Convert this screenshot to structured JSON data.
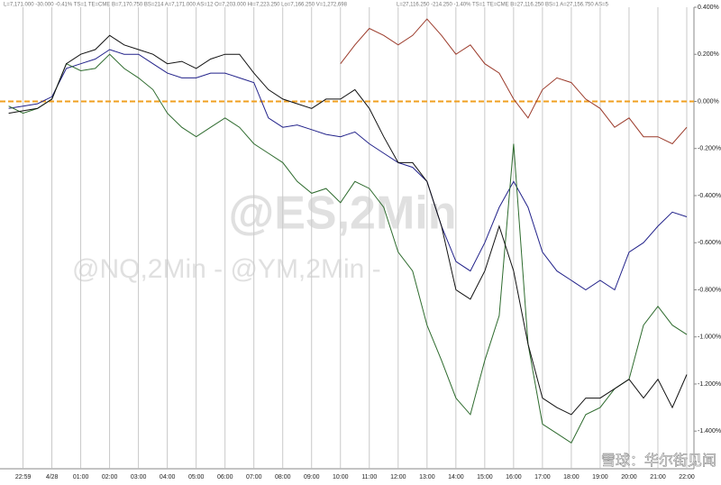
{
  "chart_data": {
    "type": "line",
    "header": [
      "L=7,171.000 -30.000 -0.41% TS=1 TE=CME B=7,170.750 BS=214 A=7,171.000 AS=12 O=7,203.000 Hi=7,223.250 Lo=7,166.250 V=1,272,698",
      "L=27,116.250 -214.250 -1.40% TS=1 TE=CME B=27,116.250 BS=1 A=27,156.750 AS=5"
    ],
    "watermarks": [
      "@ES,2Min",
      "@NQ,2Min - @YM,2Min -",
      "雪球：华尔街见闻"
    ],
    "x": [
      -1.5,
      -1,
      -0.5,
      0,
      0.5,
      1,
      1.5,
      2,
      2.5,
      3,
      3.5,
      4,
      4.5,
      5,
      5.5,
      6,
      6.5,
      7,
      7.5,
      8,
      8.5,
      9,
      9.5,
      10,
      10.5,
      11,
      11.5,
      12,
      12.5,
      13,
      13.5,
      14,
      14.5,
      15,
      15.5,
      16,
      16.5,
      17,
      17.5,
      18,
      18.5,
      19,
      19.5,
      20,
      20.5,
      21,
      21.5,
      22
    ],
    "xlim": [
      -1.8,
      22.25
    ],
    "xticks": [
      {
        "value": -1,
        "label": "22:59"
      },
      {
        "value": 0,
        "label": "4/28"
      },
      {
        "value": 1,
        "label": "01:00"
      },
      {
        "value": 2,
        "label": "02:00"
      },
      {
        "value": 3,
        "label": "03:00"
      },
      {
        "value": 4,
        "label": "04:00"
      },
      {
        "value": 5,
        "label": "05:00"
      },
      {
        "value": 6,
        "label": "06:00"
      },
      {
        "value": 7,
        "label": "07:00"
      },
      {
        "value": 8,
        "label": "08:00"
      },
      {
        "value": 9,
        "label": "09:00"
      },
      {
        "value": 10,
        "label": "10:00"
      },
      {
        "value": 11,
        "label": "11:00"
      },
      {
        "value": 12,
        "label": "12:00"
      },
      {
        "value": 13,
        "label": "13:00"
      },
      {
        "value": 14,
        "label": "14:00"
      },
      {
        "value": 15,
        "label": "15:00"
      },
      {
        "value": 16,
        "label": "16:00"
      },
      {
        "value": 17,
        "label": "17:00"
      },
      {
        "value": 18,
        "label": "18:00"
      },
      {
        "value": 19,
        "label": "19:00"
      },
      {
        "value": 20,
        "label": "20:00"
      },
      {
        "value": 21,
        "label": "21:00"
      },
      {
        "value": 22,
        "label": "22:00"
      }
    ],
    "ylim": [
      -1.56,
      0.4
    ],
    "yticks": [
      {
        "value": 0.4,
        "label": "0.400%"
      },
      {
        "value": 0.2,
        "label": "0.200%"
      },
      {
        "value": 0,
        "label": "0.000%"
      },
      {
        "value": -0.2,
        "label": "-0.200%"
      },
      {
        "value": -0.4,
        "label": "-0.400%"
      },
      {
        "value": -0.6,
        "label": "-0.600%"
      },
      {
        "value": -0.8,
        "label": "-0.800%"
      },
      {
        "value": -1.0,
        "label": "-1.000%"
      },
      {
        "value": -1.2,
        "label": "-1.200%"
      },
      {
        "value": -1.4,
        "label": "-1.400%"
      }
    ],
    "grid": true,
    "zero_line_color": "#f0a020",
    "series": [
      {
        "color": "#9b3a2a",
        "values": [
          null,
          null,
          null,
          null,
          null,
          null,
          null,
          null,
          null,
          null,
          null,
          null,
          null,
          null,
          null,
          null,
          null,
          null,
          null,
          null,
          null,
          null,
          null,
          0.16,
          0.24,
          0.31,
          0.28,
          0.24,
          0.28,
          0.35,
          0.28,
          0.2,
          0.24,
          0.16,
          0.12,
          0.01,
          -0.07,
          0.05,
          0.1,
          0.08,
          0.01,
          -0.03,
          -0.11,
          -0.07,
          -0.15,
          -0.15,
          -0.18,
          -0.11
        ]
      },
      {
        "color": "#22228a",
        "values": [
          -0.03,
          -0.02,
          -0.01,
          0.02,
          0.14,
          0.16,
          0.18,
          0.22,
          0.2,
          0.2,
          0.16,
          0.12,
          0.1,
          0.1,
          0.12,
          0.12,
          0.1,
          0.08,
          -0.07,
          -0.11,
          -0.1,
          -0.12,
          -0.14,
          -0.15,
          -0.13,
          -0.18,
          -0.22,
          -0.26,
          -0.28,
          -0.34,
          -0.53,
          -0.68,
          -0.72,
          -0.6,
          -0.45,
          -0.34,
          -0.45,
          -0.64,
          -0.72,
          -0.76,
          -0.8,
          -0.76,
          -0.8,
          -0.64,
          -0.6,
          -0.53,
          -0.47,
          -0.49
        ]
      },
      {
        "color": "#2e6b2e",
        "values": [
          -0.02,
          -0.05,
          -0.03,
          0.01,
          0.16,
          0.13,
          0.14,
          0.2,
          0.14,
          0.1,
          0.05,
          -0.05,
          -0.11,
          -0.15,
          -0.11,
          -0.07,
          -0.11,
          -0.18,
          -0.22,
          -0.26,
          -0.34,
          -0.39,
          -0.37,
          -0.43,
          -0.34,
          -0.37,
          -0.45,
          -0.64,
          -0.72,
          -0.95,
          -1.1,
          -1.26,
          -1.33,
          -1.1,
          -0.91,
          -0.18,
          -1.03,
          -1.37,
          -1.41,
          -1.45,
          -1.33,
          -1.3,
          -1.22,
          -1.18,
          -0.95,
          -0.87,
          -0.95,
          -0.99
        ]
      },
      {
        "color": "#111111",
        "values": [
          -0.05,
          -0.04,
          -0.03,
          0.01,
          0.16,
          0.2,
          0.22,
          0.28,
          0.24,
          0.22,
          0.2,
          0.16,
          0.17,
          0.14,
          0.18,
          0.2,
          0.2,
          0.12,
          0.05,
          0.01,
          -0.01,
          -0.03,
          0.01,
          0.01,
          0.05,
          -0.03,
          -0.15,
          -0.26,
          -0.26,
          -0.34,
          -0.53,
          -0.8,
          -0.84,
          -0.72,
          -0.53,
          -0.72,
          -1.03,
          -1.26,
          -1.3,
          -1.33,
          -1.26,
          -1.26,
          -1.22,
          -1.18,
          -1.26,
          -1.18,
          -1.3,
          -1.16
        ]
      }
    ]
  }
}
